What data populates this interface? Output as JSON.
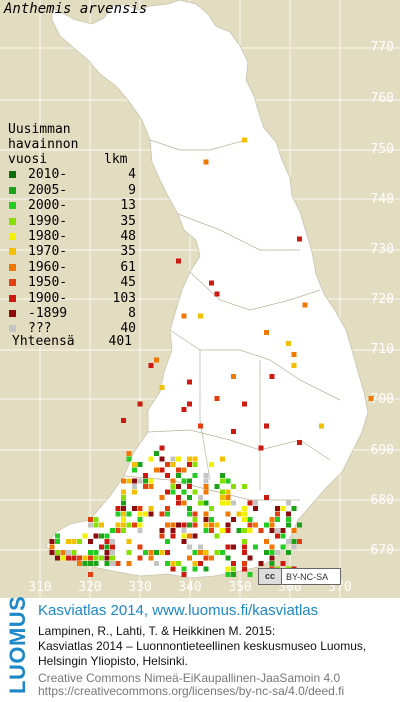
{
  "title": "Anthemis arvensis",
  "legend": {
    "header_line1": "Uusimman",
    "header_line2": "havainnon",
    "header_col_left": "vuosi",
    "header_col_right": "lkm",
    "rows": [
      {
        "label": "2010-",
        "count": "4",
        "color": "#0b6e0b"
      },
      {
        "label": "2005-",
        "count": "9",
        "color": "#1aa31a"
      },
      {
        "label": "2000-",
        "count": "13",
        "color": "#22cc22"
      },
      {
        "label": "1990-",
        "count": "35",
        "color": "#88e000"
      },
      {
        "label": "1980-",
        "count": "48",
        "color": "#f2f200"
      },
      {
        "label": "1970-",
        "count": "35",
        "color": "#f2c000"
      },
      {
        "label": "1960-",
        "count": "61",
        "color": "#f07800"
      },
      {
        "label": "1950-",
        "count": "45",
        "color": "#e04010"
      },
      {
        "label": "1900-",
        "count": "103",
        "color": "#cc1a10"
      },
      {
        "label": "-1899",
        "count": "8",
        "color": "#8a0c0c"
      },
      {
        "label": "???",
        "count": "40",
        "color": "#c4c4c4"
      }
    ],
    "total_label": "Yhteensä",
    "total_value": "401"
  },
  "y_axis_labels": [
    "770",
    "760",
    "750",
    "740",
    "730",
    "720",
    "710",
    "700",
    "690",
    "680",
    "670"
  ],
  "x_axis_labels": [
    "310",
    "320",
    "330",
    "340",
    "350",
    "360",
    "370"
  ],
  "license_badge": {
    "cc": "cc",
    "text": "BY-NC-SA"
  },
  "footer": {
    "logo": "LUOMUS",
    "atlas_title": "Kasviatlas 2014, www.luomus.fi/kasviatlas",
    "citation_1": "Lampinen, R., Lahti, T. & Heikkinen M. 2015:",
    "citation_2": "Kasviatlas 2014 – Luonnontieteellinen keskusmuseo Luomus,",
    "citation_3": "Helsingin Yliopisto, Helsinki.",
    "license_1": "Creative Commons Nimeä-EiKaupallinen-JaaSamoin 4.0",
    "license_2": "https://creativecommons.org/licenses/by-nc-sa/4.0/deed.fi"
  }
}
